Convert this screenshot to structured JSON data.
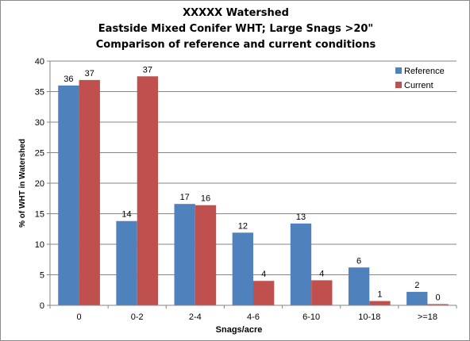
{
  "chart_data": {
    "type": "bar",
    "title": [
      "XXXXX Watershed",
      "Eastside Mixed Conifer WHT;  Large Snags >20\"",
      "Comparison of reference and current conditions"
    ],
    "xlabel": "Snags/acre",
    "ylabel": "% of WHT in Watershed",
    "ylim": [
      0,
      40
    ],
    "yticks": [
      0,
      5,
      10,
      15,
      20,
      25,
      30,
      35,
      40
    ],
    "grid": true,
    "legend_position": "top-right",
    "categories": [
      "0",
      "0-2",
      "2-4",
      "4-6",
      "6-10",
      "10-18",
      ">=18"
    ],
    "series": [
      {
        "name": "Reference",
        "color": "#4f81bd",
        "values": [
          36,
          13.8,
          16.6,
          11.9,
          13.4,
          6.2,
          2.2
        ],
        "labels": [
          "36",
          "14",
          "17",
          "12",
          "13",
          "6",
          "2"
        ]
      },
      {
        "name": "Current",
        "color": "#c0504d",
        "values": [
          36.9,
          37.5,
          16.4,
          4.0,
          4.1,
          0.7,
          0.2
        ],
        "labels": [
          "37",
          "37",
          "16",
          "4",
          "4",
          "1",
          "0"
        ]
      }
    ]
  }
}
